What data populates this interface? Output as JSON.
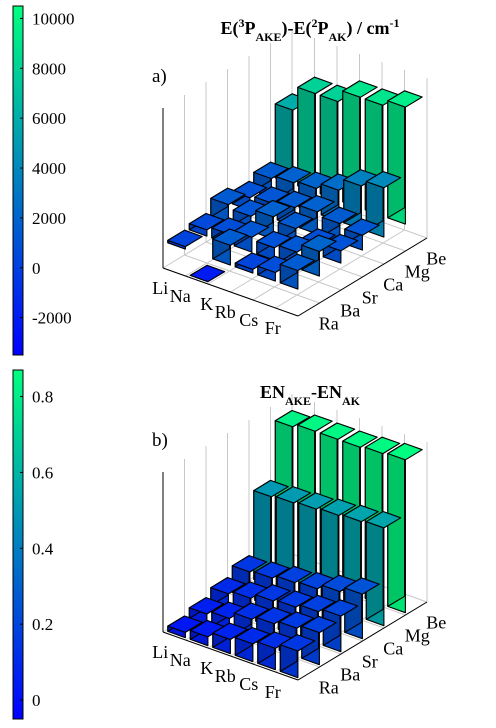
{
  "chart_data": [
    {
      "type": "bar3d",
      "panel_label": "a)",
      "title_parts": [
        {
          "text": "E(",
          "kind": "normal"
        },
        {
          "text": "3",
          "kind": "sup"
        },
        {
          "text": "P",
          "kind": "normal"
        },
        {
          "text": "AKE",
          "kind": "sub"
        },
        {
          "text": ")-E(",
          "kind": "normal"
        },
        {
          "text": "2",
          "kind": "sup"
        },
        {
          "text": "P",
          "kind": "normal"
        },
        {
          "text": "AK",
          "kind": "sub"
        },
        {
          "text": ") / cm",
          "kind": "normal"
        },
        {
          "text": "-1",
          "kind": "sup"
        }
      ],
      "x_categories": [
        "Li",
        "Na",
        "K",
        "Rb",
        "Cs",
        "Fr"
      ],
      "y_categories": [
        "Ra",
        "Ba",
        "Sr",
        "Ca",
        "Mg",
        "Be"
      ],
      "zlim": [
        -2000,
        11000
      ],
      "colorbar": {
        "ticks": [
          -2000,
          0,
          2000,
          4000,
          6000,
          8000,
          10000
        ],
        "range": [
          -3500,
          10500
        ]
      },
      "values": [
        [
          6000,
          8000,
          8000,
          9000,
          9000,
          9500
        ],
        [
          1500,
          1800,
          2000,
          2500,
          3500,
          4000
        ],
        [
          1000,
          1200,
          1500,
          1800,
          1500,
          1200
        ],
        [
          1500,
          1200,
          1800,
          1500,
          800,
          1000
        ],
        [
          500,
          800,
          1200,
          1000,
          1300,
          2000
        ],
        [
          200,
          -2000,
          1600,
          300,
          700,
          1500
        ]
      ],
      "grid": true
    },
    {
      "type": "bar3d",
      "panel_label": "b)",
      "title_parts": [
        {
          "text": "EN",
          "kind": "normal"
        },
        {
          "text": "AKE",
          "kind": "sub"
        },
        {
          "text": "-EN",
          "kind": "normal"
        },
        {
          "text": "AK",
          "kind": "sub"
        }
      ],
      "x_categories": [
        "Li",
        "Na",
        "K",
        "Rb",
        "Cs",
        "Fr"
      ],
      "y_categories": [
        "Ra",
        "Ba",
        "Sr",
        "Ca",
        "Mg",
        "Be"
      ],
      "zlim": [
        0,
        0.9
      ],
      "colorbar": {
        "ticks": [
          0,
          0.2,
          0.4,
          0.6,
          0.8
        ],
        "range": [
          -0.05,
          0.87
        ]
      },
      "values": [
        [
          0.82,
          0.84,
          0.84,
          0.84,
          0.85,
          0.86
        ],
        [
          0.5,
          0.51,
          0.52,
          0.53,
          0.54,
          0.55
        ],
        [
          0.15,
          0.16,
          0.18,
          0.19,
          0.22,
          0.25
        ],
        [
          0.1,
          0.12,
          0.15,
          0.16,
          0.18,
          0.2
        ],
        [
          0.06,
          0.08,
          0.12,
          0.14,
          0.16,
          0.18
        ],
        [
          0.03,
          0.05,
          0.08,
          0.1,
          0.12,
          0.15
        ]
      ],
      "grid": true
    }
  ]
}
